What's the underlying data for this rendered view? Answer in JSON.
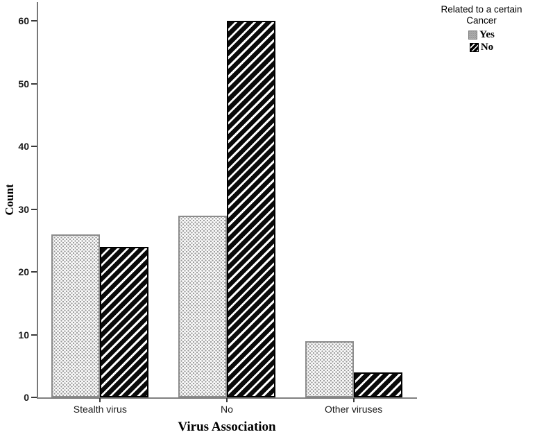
{
  "chart_data": {
    "type": "bar",
    "title": "",
    "xlabel": "Virus Association",
    "ylabel": "Count",
    "categories": [
      "Stealth virus",
      "No",
      "Other viruses"
    ],
    "series": [
      {
        "name": "Yes",
        "values": [
          26,
          29,
          9
        ],
        "pattern": "dots-light-gray",
        "fill": "#f5f5f5",
        "border": "#8c8c8c"
      },
      {
        "name": "No",
        "values": [
          24,
          60,
          4
        ],
        "pattern": "black-diagonal-stripes",
        "fill": "#000000",
        "border": "#000000"
      }
    ],
    "ylim": [
      0,
      62
    ],
    "yticks": [
      0,
      10,
      20,
      30,
      40,
      50,
      60
    ],
    "grid": "off",
    "legend": {
      "position": "top-right-outside",
      "title": "Related to a certain Cancer",
      "entries": [
        "Yes",
        "No"
      ]
    },
    "colors": {
      "background": "#ffffff",
      "axis_line": "#7a7a7a",
      "text": "#000000"
    }
  }
}
